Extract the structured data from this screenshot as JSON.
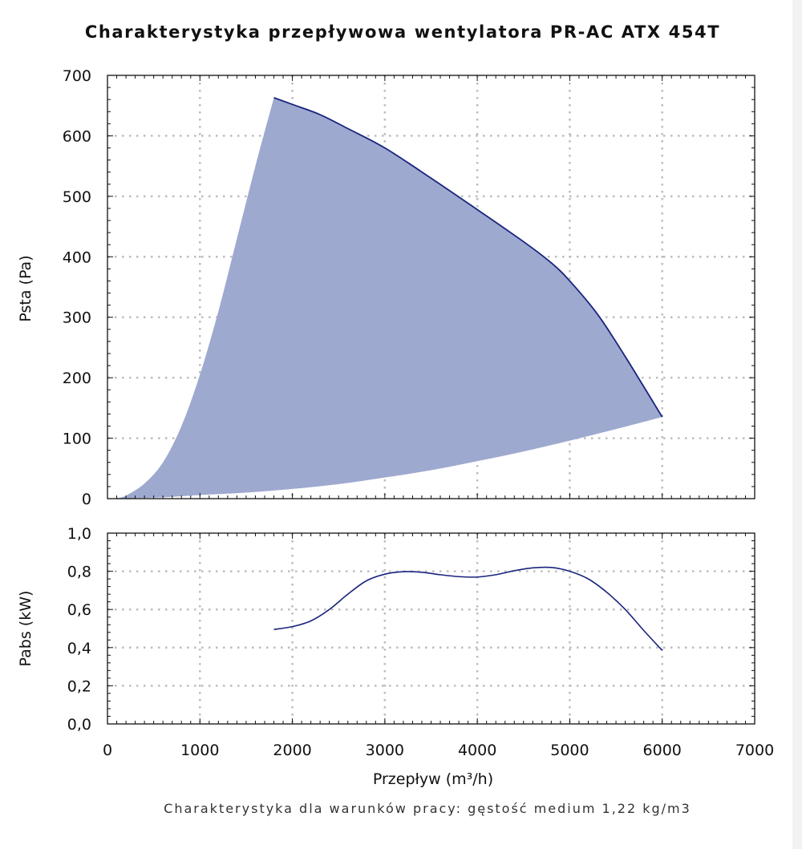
{
  "chart_data": [
    {
      "type": "area",
      "title": "Charakterystyka przepływowa wentylatora PR-AC ATX 454T",
      "xlabel": "",
      "ylabel": "Psta (Pa)",
      "xlim": [
        0,
        7000
      ],
      "ylim": [
        0,
        700
      ],
      "x_ticks": [
        "0",
        "1000",
        "2000",
        "3000",
        "4000",
        "5000",
        "6000",
        "7000"
      ],
      "y_ticks": [
        "0",
        "100",
        "200",
        "300",
        "400",
        "500",
        "600",
        "700"
      ],
      "grid": true,
      "color": "#9ea9cf",
      "edge_color": "#1a237e",
      "series": [
        {
          "role": "upper-max-curve",
          "x": [
            1800,
            2000,
            2300,
            2600,
            3000,
            3500,
            4000,
            4500,
            4800,
            5000,
            5300,
            5600,
            6000
          ],
          "y": [
            663,
            652,
            635,
            612,
            580,
            530,
            478,
            425,
            390,
            360,
            305,
            235,
            135
          ]
        },
        {
          "role": "left-boundary",
          "x": [
            50,
            100,
            200,
            400,
            600,
            800,
            1000,
            1200,
            1400,
            1600,
            1800
          ],
          "y": [
            0,
            1,
            5,
            25,
            60,
            120,
            205,
            310,
            430,
            550,
            663
          ]
        },
        {
          "role": "lower-boundary",
          "x": [
            600,
            1000,
            1500,
            2000,
            2500,
            3000,
            3500,
            4000,
            4500,
            5000,
            5500,
            6000
          ],
          "y": [
            2,
            6,
            10,
            16,
            24,
            35,
            47,
            62,
            78,
            96,
            115,
            135
          ]
        }
      ]
    },
    {
      "type": "line",
      "xlabel": "Przepływ (m³/h)",
      "ylabel": "Pabs (kW)",
      "xlim": [
        0,
        7000
      ],
      "ylim": [
        0,
        1.0
      ],
      "x_ticks": [
        "0",
        "1000",
        "2000",
        "3000",
        "4000",
        "5000",
        "6000",
        "7000"
      ],
      "y_ticks": [
        "0,0",
        "0,2",
        "0,4",
        "0,6",
        "0,8",
        "1,0"
      ],
      "grid": true,
      "color": "#1a237e",
      "series": [
        {
          "x": [
            1800,
            2000,
            2200,
            2400,
            2600,
            2800,
            3000,
            3200,
            3400,
            3600,
            3800,
            4000,
            4200,
            4400,
            4600,
            4800,
            5000,
            5200,
            5400,
            5600,
            5800,
            6000
          ],
          "y": [
            0.495,
            0.51,
            0.54,
            0.6,
            0.68,
            0.75,
            0.785,
            0.798,
            0.795,
            0.782,
            0.772,
            0.77,
            0.782,
            0.803,
            0.818,
            0.82,
            0.8,
            0.76,
            0.69,
            0.6,
            0.49,
            0.385
          ]
        }
      ]
    }
  ],
  "footer_note": "Charakterystyka dla warunków pracy: gęstość medium 1,22 kg/m3"
}
